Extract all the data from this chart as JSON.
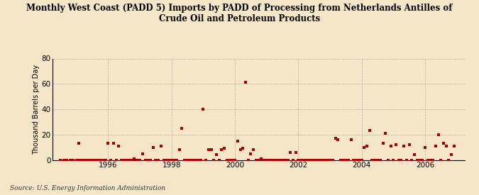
{
  "title": "Monthly West Coast (PADD 5) Imports by PADD of Processing from Netherlands Antilles of\nCrude Oil and Petroleum Products",
  "ylabel": "Thousand Barrels per Day",
  "source": "Source: U.S. Energy Information Administration",
  "background_color": "#f5e6c8",
  "plot_bg_color": "#f5e6c8",
  "marker_color": "#aa0000",
  "ylim": [
    0,
    80
  ],
  "yticks": [
    0,
    20,
    40,
    60,
    80
  ],
  "xmin": 1994.25,
  "xmax": 2007.25,
  "xticks": [
    1996,
    1998,
    2000,
    2002,
    2004,
    2006
  ],
  "data_points": [
    [
      1994.5,
      0
    ],
    [
      1994.6,
      0
    ],
    [
      1994.7,
      0
    ],
    [
      1994.8,
      0
    ],
    [
      1994.9,
      0
    ],
    [
      1995.0,
      0
    ],
    [
      1995.1,
      0
    ],
    [
      1995.2,
      0
    ],
    [
      1995.08,
      13
    ],
    [
      1995.17,
      0
    ],
    [
      1995.25,
      0
    ],
    [
      1995.33,
      0
    ],
    [
      1995.42,
      0
    ],
    [
      1995.5,
      0
    ],
    [
      1995.58,
      0
    ],
    [
      1995.67,
      0
    ],
    [
      1995.75,
      0
    ],
    [
      1995.83,
      0
    ],
    [
      1995.92,
      0
    ],
    [
      1996.0,
      13
    ],
    [
      1996.08,
      0
    ],
    [
      1996.17,
      13
    ],
    [
      1996.25,
      0
    ],
    [
      1996.33,
      11
    ],
    [
      1996.42,
      0
    ],
    [
      1996.5,
      0
    ],
    [
      1996.58,
      0
    ],
    [
      1996.67,
      0
    ],
    [
      1996.75,
      0
    ],
    [
      1996.83,
      1
    ],
    [
      1996.92,
      0
    ],
    [
      1997.0,
      0
    ],
    [
      1997.08,
      5
    ],
    [
      1997.17,
      0
    ],
    [
      1997.25,
      0
    ],
    [
      1997.33,
      0
    ],
    [
      1997.42,
      10
    ],
    [
      1997.5,
      0
    ],
    [
      1997.58,
      0
    ],
    [
      1997.67,
      11
    ],
    [
      1997.75,
      0
    ],
    [
      1997.83,
      0
    ],
    [
      1997.92,
      0
    ],
    [
      1998.0,
      0
    ],
    [
      1998.08,
      0
    ],
    [
      1998.17,
      0
    ],
    [
      1998.25,
      8
    ],
    [
      1998.33,
      25
    ],
    [
      1998.42,
      0
    ],
    [
      1998.5,
      0
    ],
    [
      1998.58,
      0
    ],
    [
      1998.67,
      0
    ],
    [
      1998.75,
      0
    ],
    [
      1998.83,
      0
    ],
    [
      1998.92,
      0
    ],
    [
      1999.0,
      40
    ],
    [
      1999.08,
      0
    ],
    [
      1999.17,
      8
    ],
    [
      1999.25,
      8
    ],
    [
      1999.33,
      0
    ],
    [
      1999.42,
      4
    ],
    [
      1999.5,
      0
    ],
    [
      1999.58,
      8
    ],
    [
      1999.67,
      9
    ],
    [
      1999.75,
      0
    ],
    [
      1999.83,
      0
    ],
    [
      1999.92,
      0
    ],
    [
      2000.0,
      0
    ],
    [
      2000.08,
      15
    ],
    [
      2000.17,
      8
    ],
    [
      2000.25,
      9
    ],
    [
      2000.33,
      61
    ],
    [
      2000.42,
      0
    ],
    [
      2000.5,
      5
    ],
    [
      2000.58,
      8
    ],
    [
      2000.67,
      0
    ],
    [
      2000.75,
      0
    ],
    [
      2000.83,
      1
    ],
    [
      2000.92,
      0
    ],
    [
      2001.0,
      0
    ],
    [
      2001.08,
      0
    ],
    [
      2001.17,
      0
    ],
    [
      2001.25,
      0
    ],
    [
      2001.33,
      0
    ],
    [
      2001.42,
      0
    ],
    [
      2001.5,
      0
    ],
    [
      2001.58,
      0
    ],
    [
      2001.67,
      0
    ],
    [
      2001.75,
      6
    ],
    [
      2001.83,
      0
    ],
    [
      2001.92,
      6
    ],
    [
      2002.0,
      0
    ],
    [
      2002.08,
      0
    ],
    [
      2002.17,
      0
    ],
    [
      2002.25,
      0
    ],
    [
      2002.33,
      0
    ],
    [
      2002.42,
      0
    ],
    [
      2002.5,
      0
    ],
    [
      2002.58,
      0
    ],
    [
      2002.67,
      0
    ],
    [
      2002.75,
      0
    ],
    [
      2002.83,
      0
    ],
    [
      2002.92,
      0
    ],
    [
      2003.0,
      0
    ],
    [
      2003.08,
      0
    ],
    [
      2003.17,
      17
    ],
    [
      2003.25,
      16
    ],
    [
      2003.33,
      0
    ],
    [
      2003.42,
      0
    ],
    [
      2003.5,
      0
    ],
    [
      2003.58,
      0
    ],
    [
      2003.67,
      16
    ],
    [
      2003.75,
      0
    ],
    [
      2003.83,
      0
    ],
    [
      2003.92,
      0
    ],
    [
      2004.0,
      0
    ],
    [
      2004.08,
      10
    ],
    [
      2004.17,
      11
    ],
    [
      2004.25,
      23
    ],
    [
      2004.33,
      0
    ],
    [
      2004.42,
      0
    ],
    [
      2004.5,
      0
    ],
    [
      2004.58,
      0
    ],
    [
      2004.67,
      13
    ],
    [
      2004.75,
      21
    ],
    [
      2004.83,
      0
    ],
    [
      2004.92,
      11
    ],
    [
      2005.0,
      0
    ],
    [
      2005.08,
      12
    ],
    [
      2005.17,
      0
    ],
    [
      2005.25,
      0
    ],
    [
      2005.33,
      11
    ],
    [
      2005.42,
      0
    ],
    [
      2005.5,
      12
    ],
    [
      2005.58,
      0
    ],
    [
      2005.67,
      4
    ],
    [
      2005.75,
      0
    ],
    [
      2005.83,
      0
    ],
    [
      2005.92,
      0
    ],
    [
      2006.0,
      10
    ],
    [
      2006.08,
      0
    ],
    [
      2006.17,
      0
    ],
    [
      2006.25,
      0
    ],
    [
      2006.33,
      11
    ],
    [
      2006.42,
      20
    ],
    [
      2006.5,
      0
    ],
    [
      2006.58,
      13
    ],
    [
      2006.67,
      11
    ],
    [
      2006.75,
      0
    ],
    [
      2006.83,
      4
    ],
    [
      2006.92,
      11
    ]
  ]
}
